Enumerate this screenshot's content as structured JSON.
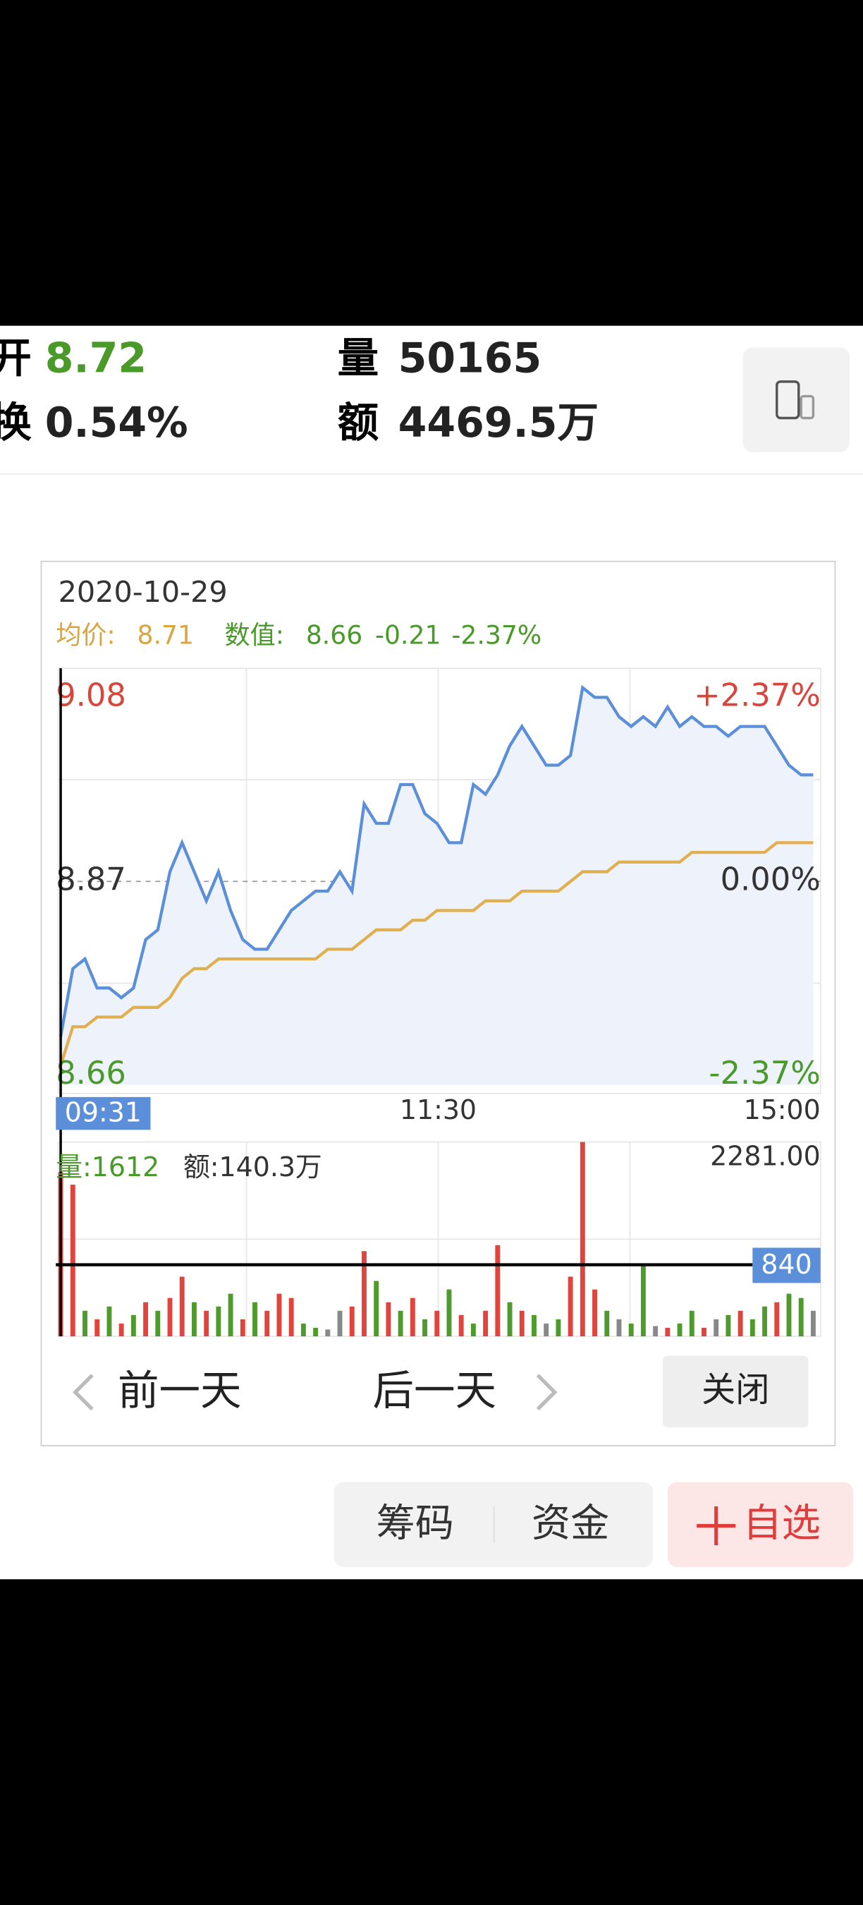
{
  "stats": [
    {
      "label": "开",
      "value": "8.72",
      "color": "#4a9a2a"
    },
    {
      "label": "换",
      "value": "0.54%",
      "color": "#222222"
    },
    {
      "label": "量",
      "value": "50165",
      "color": "#222222"
    },
    {
      "label": "额",
      "value": "4469.5万",
      "color": "#222222"
    }
  ],
  "chart_data": {
    "type": "line",
    "date": "2020-10-29",
    "legend": {
      "avg_label": "均价:",
      "avg_value": "8.71",
      "avg_color": "#d9a540",
      "value_label": "数值:",
      "value": "8.66",
      "change": "-0.21",
      "change_pct": "-2.37%",
      "value_color": "#4a9a2a"
    },
    "ylim": [
      8.66,
      9.08
    ],
    "yticks": [
      9.08,
      8.87,
      8.66
    ],
    "ytick_colors": [
      "#d9443b",
      "#333333",
      "#4a9a2a"
    ],
    "yticks_right": [
      {
        "value": 9.08,
        "label": "+2.37%"
      },
      {
        "value": 8.87,
        "label": "0.00%"
      },
      {
        "value": 8.66,
        "label": "-2.37%"
      }
    ],
    "grid_lines": [
      8.765,
      8.975
    ],
    "time_labels": [
      "09:31",
      "11:30",
      "15:00"
    ],
    "price": {
      "color": "#5b8fd9",
      "fill": "#eef2fb",
      "values": [
        8.71,
        8.78,
        8.79,
        8.76,
        8.76,
        8.75,
        8.76,
        8.81,
        8.82,
        8.88,
        8.91,
        8.88,
        8.85,
        8.88,
        8.84,
        8.81,
        8.8,
        8.8,
        8.82,
        8.84,
        8.85,
        8.86,
        8.86,
        8.88,
        8.86,
        8.95,
        8.93,
        8.93,
        8.97,
        8.97,
        8.94,
        8.93,
        8.91,
        8.91,
        8.97,
        8.96,
        8.98,
        9.01,
        9.03,
        9.01,
        8.99,
        8.99,
        9.0,
        9.07,
        9.06,
        9.06,
        9.04,
        9.03,
        9.04,
        9.03,
        9.05,
        9.03,
        9.04,
        9.03,
        9.03,
        9.02,
        9.03,
        9.03,
        9.03,
        9.01,
        8.99,
        8.98,
        8.98
      ]
    },
    "average": {
      "color": "#e0b050",
      "values": [
        8.68,
        8.72,
        8.72,
        8.73,
        8.73,
        8.73,
        8.74,
        8.74,
        8.74,
        8.75,
        8.77,
        8.78,
        8.78,
        8.79,
        8.79,
        8.79,
        8.79,
        8.79,
        8.79,
        8.79,
        8.79,
        8.79,
        8.8,
        8.8,
        8.8,
        8.81,
        8.82,
        8.82,
        8.82,
        8.83,
        8.83,
        8.84,
        8.84,
        8.84,
        8.84,
        8.85,
        8.85,
        8.85,
        8.86,
        8.86,
        8.86,
        8.86,
        8.87,
        8.88,
        8.88,
        8.88,
        8.89,
        8.89,
        8.89,
        8.89,
        8.89,
        8.89,
        8.9,
        8.9,
        8.9,
        8.9,
        8.9,
        8.9,
        8.9,
        8.91,
        8.91,
        8.91,
        8.91
      ]
    },
    "volume": {
      "label": "量:1612",
      "label_color": "#4a9a2a",
      "amount": "额:140.3万",
      "ylim": [
        0,
        2281
      ],
      "max_label": {
        "value": 2281,
        "label": "2281.00"
      },
      "marker": 840,
      "values": [
        1925,
        1780,
        300,
        200,
        350,
        150,
        250,
        400,
        300,
        450,
        700,
        400,
        300,
        350,
        500,
        200,
        400,
        300,
        500,
        450,
        150,
        100,
        80,
        300,
        350,
        1000,
        650,
        400,
        300,
        450,
        200,
        300,
        550,
        250,
        150,
        300,
        1070,
        400,
        300,
        250,
        150,
        200,
        700,
        2281,
        550,
        300,
        200,
        150,
        855,
        120,
        100,
        150,
        300,
        100,
        200,
        250,
        300,
        200,
        350,
        400,
        500,
        450,
        300
      ],
      "colors": [
        "#e0443c",
        "#e0443c",
        "#4f9a2c",
        "#e0443c",
        "#4f9a2c",
        "#e0443c",
        "#4f9a2c",
        "#e0443c",
        "#4f9a2c",
        "#e0443c",
        "#e0443c",
        "#4f9a2c",
        "#e0443c",
        "#4f9a2c",
        "#4f9a2c",
        "#e0443c",
        "#4f9a2c",
        "#e0443c",
        "#e0443c",
        "#e0443c",
        "#4f9a2c",
        "#4f9a2c",
        "#888888",
        "#888888",
        "#e0443c",
        "#e0443c",
        "#4f9a2c",
        "#e0443c",
        "#4f9a2c",
        "#e0443c",
        "#4f9a2c",
        "#e0443c",
        "#4f9a2c",
        "#e0443c",
        "#4f9a2c",
        "#e0443c",
        "#e0443c",
        "#4f9a2c",
        "#e0443c",
        "#4f9a2c",
        "#888888",
        "#4f9a2c",
        "#e0443c",
        "#e0443c",
        "#e0443c",
        "#4f9a2c",
        "#888888",
        "#4f9a2c",
        "#4f9a2c",
        "#888888",
        "#e0443c",
        "#4f9a2c",
        "#4f9a2c",
        "#e0443c",
        "#888888",
        "#4f9a2c",
        "#e0443c",
        "#4f9a2c",
        "#4f9a2c",
        "#e0443c",
        "#4f9a2c",
        "#4f9a2c",
        "#888888"
      ]
    }
  },
  "nav": {
    "prev": "前一天",
    "next": "后一天",
    "close": "关闭"
  },
  "bottom": {
    "tabs": [
      "筹码",
      "资金"
    ],
    "add": "自选"
  }
}
